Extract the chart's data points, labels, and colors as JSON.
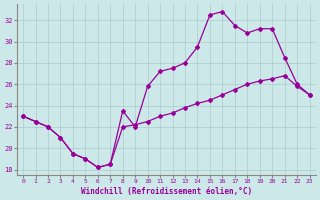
{
  "xlabel": "Windchill (Refroidissement éolien,°C)",
  "background_color": "#cce8e8",
  "line_color": "#990099",
  "grid_color": "#aacccc",
  "y_line1": [
    23.0,
    22.5,
    22.0,
    21.0,
    19.5,
    19.0,
    18.2,
    18.5,
    23.5,
    22.0,
    25.8,
    27.2,
    27.5,
    28.0,
    29.5,
    32.5,
    32.8,
    31.5,
    30.8,
    31.2,
    31.2,
    28.5,
    26.0,
    25.0
  ],
  "y_line2": [
    23.0,
    22.5,
    22.0,
    21.0,
    19.5,
    19.0,
    18.2,
    18.5,
    22.0,
    22.2,
    22.5,
    23.0,
    23.3,
    23.8,
    24.2,
    24.5,
    25.0,
    25.5,
    26.0,
    26.3,
    26.5,
    26.8,
    25.8,
    25.0
  ],
  "ylim": [
    17.5,
    33.5
  ],
  "xlim": [
    -0.5,
    23.5
  ],
  "yticks": [
    18,
    20,
    22,
    24,
    26,
    28,
    30,
    32
  ],
  "xticks": [
    0,
    1,
    2,
    3,
    4,
    5,
    6,
    7,
    8,
    9,
    10,
    11,
    12,
    13,
    14,
    15,
    16,
    17,
    18,
    19,
    20,
    21,
    22,
    23
  ]
}
